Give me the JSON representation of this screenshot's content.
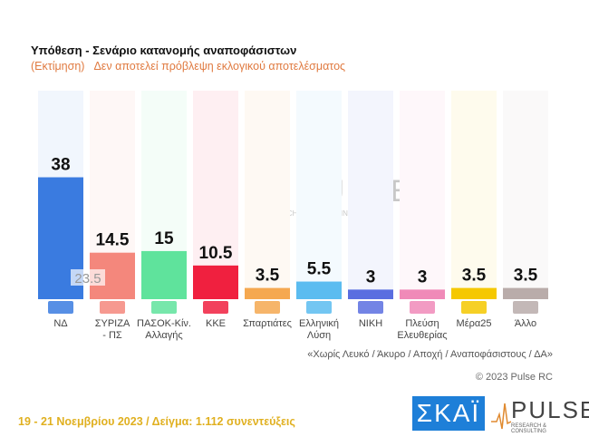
{
  "header": {
    "title": "Υπόθεση - Σενάριο κατανομής αναποφάσιστων",
    "subtitle_a": "(Εκτίμηση)",
    "subtitle_b": "Δεν αποτελεί πρόβλεψη εκλογικού αποτελέσματος"
  },
  "chart_data": {
    "type": "bar",
    "categories": [
      "ΝΔ",
      "ΣΥΡΙΖΑ - ΠΣ",
      "ΠΑΣΟΚ-Κίν. Αλλαγής",
      "ΚΚΕ",
      "Σπαρτιάτες",
      "Ελληνική Λύση",
      "ΝΙΚΗ",
      "Πλεύση Ελευθερίας",
      "Μέρα25",
      "Άλλο"
    ],
    "category_lines": [
      [
        "ΝΔ"
      ],
      [
        "ΣΥΡΙΖΑ",
        "- ΠΣ"
      ],
      [
        "ΠΑΣΟΚ-Κίν.",
        "Αλλαγής"
      ],
      [
        "ΚΚΕ"
      ],
      [
        "Σπαρτιάτες"
      ],
      [
        "Ελληνική",
        "Λύση"
      ],
      [
        "ΝΙΚΗ"
      ],
      [
        "Πλεύση",
        "Ελευθερίας"
      ],
      [
        "Μέρα25"
      ],
      [
        "Άλλο"
      ]
    ],
    "values": [
      38,
      14.5,
      15,
      10.5,
      3.5,
      5.5,
      3,
      3,
      3.5,
      3.5
    ],
    "value_labels": [
      "38",
      "14.5",
      "15",
      "10.5",
      "3.5",
      "5.5",
      "3",
      "3",
      "3.5",
      "3.5"
    ],
    "colors": [
      "#3a7be0",
      "#f4877c",
      "#5fe39c",
      "#f0203f",
      "#f5a850",
      "#5bbcf0",
      "#5a6ee0",
      "#f08ab8",
      "#f5c800",
      "#b9acaa"
    ],
    "annotation": "23.5",
    "ylim": [
      0,
      65
    ],
    "grid": false,
    "legend": "none"
  },
  "watermark": {
    "brand": "PULSE",
    "tagline": "RESEARCH & CONSULTING"
  },
  "note": "«Χωρίς Λευκό / Άκυρο / Αποχή / Αναποφάσιστους / ΔΑ»",
  "copyright": "© 2023 Pulse RC",
  "footer": "19 - 21  Νοεμβρίου  2023  /  Δείγμα:  1.112 συνεντεύξεις",
  "logos": {
    "skai": "ΣΚΑΪ",
    "pulse": "PULSE",
    "pulse_tagline": "RESEARCH & CONSULTING"
  }
}
